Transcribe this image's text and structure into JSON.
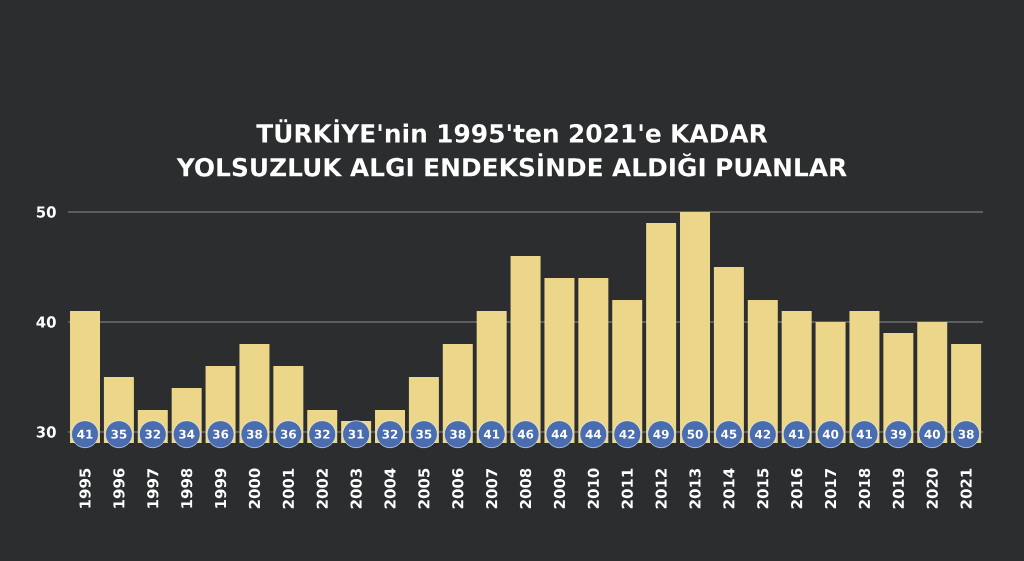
{
  "chart_data": {
    "type": "bar",
    "title": "TÜRKİYE'nin 1995'ten 2021'e KADAR YOLSUZLUK ALGI ENDEKSİNDE ALDIĞI PUANLAR",
    "categories": [
      "1995",
      "1996",
      "1997",
      "1998",
      "1999",
      "2000",
      "2001",
      "2002",
      "2003",
      "2004",
      "2005",
      "2006",
      "2007",
      "2008",
      "2009",
      "2010",
      "2011",
      "2012",
      "2013",
      "2014",
      "2015",
      "2016",
      "2017",
      "2018",
      "2019",
      "2020",
      "2021"
    ],
    "values": [
      41,
      35,
      32,
      34,
      36,
      38,
      36,
      32,
      31,
      32,
      35,
      38,
      41,
      46,
      44,
      44,
      42,
      49,
      50,
      45,
      42,
      41,
      40,
      41,
      39,
      40,
      38
    ],
    "color": "#ecd68a",
    "ylim": [
      29,
      50
    ],
    "yticks": [
      30,
      40,
      50
    ],
    "grid": "y",
    "data_labels": true
  }
}
